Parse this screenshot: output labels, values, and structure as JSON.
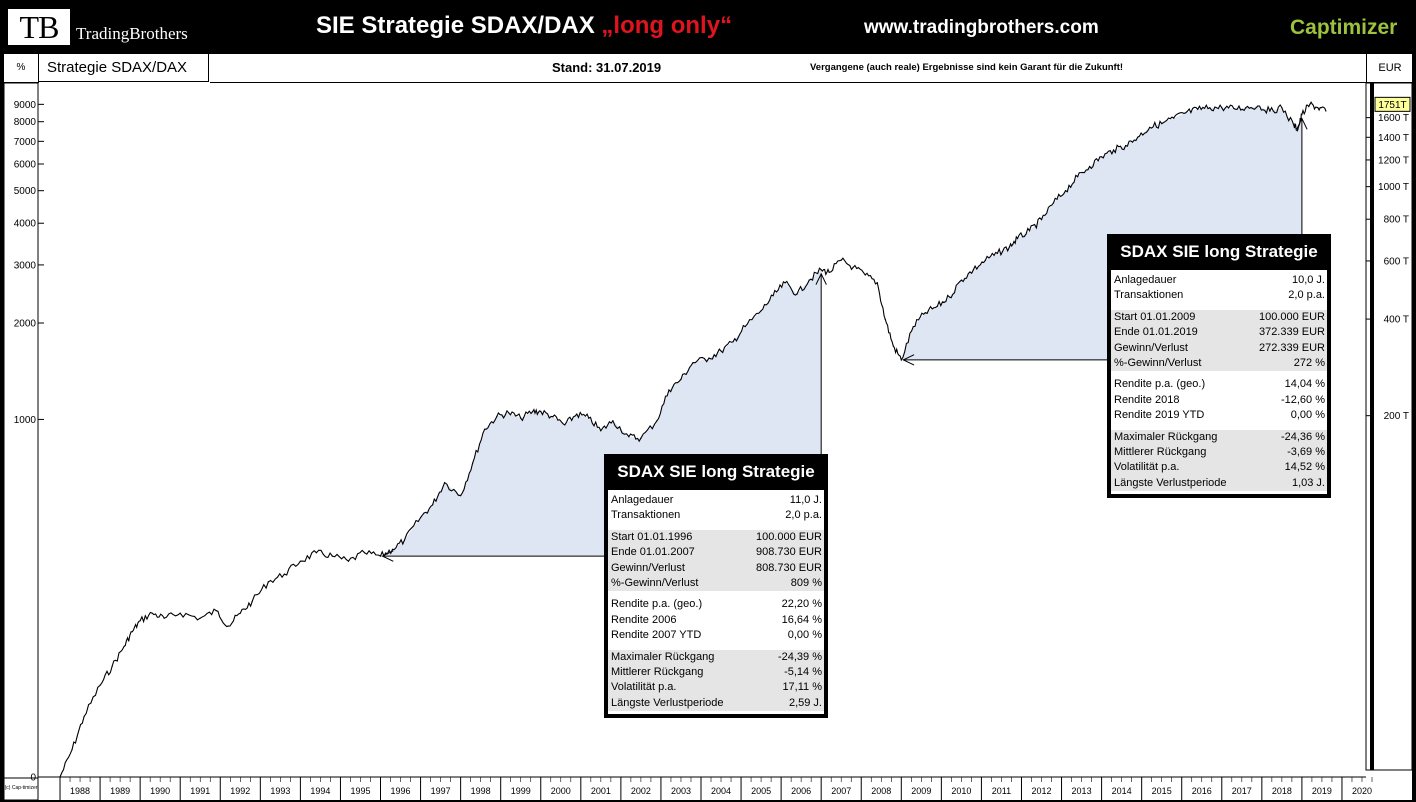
{
  "header": {
    "logo_mark": "TB",
    "logo_name": "TradingBrothers",
    "title": "SIE Strategie SDAX/DAX",
    "title_suffix": "„long only“",
    "url": "www.tradingbrothers.com",
    "brand": "Captimizer"
  },
  "subheader": {
    "unit": "%",
    "name": "Strategie SDAX/DAX",
    "stand": "Stand: 31.07.2019",
    "disclaimer": "Vergangene (auch reale) Ergebnisse sind kein Garant für die Zukunft!",
    "currency": "EUR",
    "copyright": "(c) Cap-timizer"
  },
  "colors": {
    "line": "#000000",
    "fill": "#dfe6f3",
    "accent_red": "#e0141e",
    "brand_green": "#9dc23b",
    "price_tag": "#ffff99"
  },
  "chart_data": {
    "type": "line",
    "scale": "log",
    "y_ticks": [
      "9000",
      "8000",
      "7000",
      "6000",
      "5000",
      "4000",
      "3000",
      "2000",
      "1000",
      "0"
    ],
    "right_ticks": [
      "1600 T",
      "1400 T",
      "1200 T",
      "1000 T",
      "800 T",
      "600 T",
      "400 T",
      "200 T"
    ],
    "current_value": "1751T",
    "x_ticks": [
      "1988",
      "1989",
      "1990",
      "1991",
      "1992",
      "1993",
      "1994",
      "1995",
      "1996",
      "1997",
      "1998",
      "1999",
      "2000",
      "2001",
      "2002",
      "2003",
      "2004",
      "2005",
      "2006",
      "2007",
      "2008",
      "2009",
      "2010",
      "2011",
      "2012",
      "2013",
      "2014",
      "2015",
      "2016",
      "2017",
      "2018",
      "2019",
      "2020"
    ],
    "series": [
      {
        "x": [
          1988.0,
          1988.3,
          1988.6,
          1989.0,
          1989.3,
          1989.6,
          1989.8,
          1990.0,
          1990.3,
          1990.6,
          1991.0,
          1991.5,
          1991.9,
          1992.2,
          1992.5,
          1992.8,
          1993.2,
          1993.6,
          1994.0,
          1994.4,
          1994.8,
          1995.2,
          1995.6,
          1996.0,
          1996.3,
          1996.6,
          1997.0,
          1997.3,
          1997.6,
          1998.0,
          1998.3,
          1998.6,
          1998.9,
          1999.2,
          1999.5,
          1999.8,
          2000.0,
          2000.3,
          2000.6,
          2000.9,
          2001.2,
          2001.5,
          2001.8,
          2002.2,
          2002.5,
          2002.9,
          2003.2,
          2003.5,
          2003.8,
          2004.2,
          2004.5,
          2004.8,
          2005.1,
          2005.5,
          2005.8,
          2006.1,
          2006.4,
          2006.7,
          2007.0,
          2007.2,
          2007.5,
          2007.8,
          2008.1,
          2008.4,
          2008.6,
          2008.8,
          2009.0,
          2009.3,
          2009.6,
          2009.9,
          2010.2,
          2010.5,
          2010.8,
          2011.1,
          2011.4,
          2011.7,
          2011.9,
          2012.2,
          2012.5,
          2012.8,
          2013.1,
          2013.4,
          2013.7,
          2014.0,
          2014.3,
          2014.6,
          2014.9,
          2015.2,
          2015.5,
          2015.8,
          2016.1,
          2016.4,
          2016.7,
          2017.0,
          2017.3,
          2017.6,
          2017.9,
          2018.2,
          2018.5,
          2018.8,
          2018.9,
          2019.0,
          2019.2,
          2019.4,
          2019.6
        ],
        "y": [
          0,
          20,
          50,
          85,
          110,
          140,
          165,
          185,
          200,
          190,
          200,
          190,
          205,
          175,
          200,
          225,
          270,
          290,
          325,
          350,
          340,
          325,
          350,
          340,
          360,
          390,
          470,
          520,
          620,
          560,
          720,
          930,
          1020,
          1050,
          1010,
          1060,
          1060,
          1020,
          960,
          1040,
          1010,
          920,
          990,
          880,
          870,
          990,
          1240,
          1340,
          1510,
          1560,
          1640,
          1750,
          1950,
          2180,
          2420,
          2650,
          2450,
          2700,
          2900,
          2850,
          3100,
          2950,
          2800,
          2650,
          2050,
          1700,
          1540,
          1950,
          2150,
          2250,
          2400,
          2700,
          2900,
          3100,
          3250,
          3400,
          3600,
          3800,
          4100,
          4600,
          5000,
          5500,
          5900,
          6300,
          6600,
          6800,
          7200,
          7700,
          7900,
          8200,
          8500,
          8700,
          8800,
          8800,
          8750,
          8800,
          8900,
          8600,
          8800,
          7800,
          7600,
          8400,
          9000,
          8800,
          8600
        ]
      }
    ],
    "shaded_periods": [
      [
        1996.0,
        2007.0
      ],
      [
        2009.0,
        2019.0
      ]
    ]
  },
  "stats_boxes": [
    {
      "title": "SDAX SIE long Strategie",
      "groups": [
        {
          "shaded": false,
          "rows": [
            {
              "label": "Anlagedauer",
              "value": "11,0 J."
            },
            {
              "label": "Transaktionen",
              "value": "2,0 p.a."
            }
          ]
        },
        {
          "shaded": true,
          "rows": [
            {
              "label": "Start  01.01.1996",
              "value": "100.000 EUR"
            },
            {
              "label": "Ende 01.01.2007",
              "value": "908.730 EUR"
            },
            {
              "label": "Gewinn/Verlust",
              "value": "808.730 EUR"
            },
            {
              "label": "%-Gewinn/Verlust",
              "value": "809 %"
            }
          ]
        },
        {
          "shaded": false,
          "rows": [
            {
              "label": "Rendite p.a. (geo.)",
              "value": "22,20 %"
            },
            {
              "label": "Rendite 2006",
              "value": "16,64 %"
            },
            {
              "label": "Rendite 2007 YTD",
              "value": "0,00 %"
            }
          ]
        },
        {
          "shaded": true,
          "rows": [
            {
              "label": "Maximaler Rückgang",
              "value": "-24,39 %"
            },
            {
              "label": "Mittlerer Rückgang",
              "value": "-5,14 %"
            },
            {
              "label": "Volatilität p.a.",
              "value": "17,11 %"
            },
            {
              "label": "Längste Verlustperiode",
              "value": "2,59 J."
            }
          ]
        }
      ]
    },
    {
      "title": "SDAX SIE long Strategie",
      "groups": [
        {
          "shaded": false,
          "rows": [
            {
              "label": "Anlagedauer",
              "value": "10,0 J."
            },
            {
              "label": "Transaktionen",
              "value": "2,0 p.a."
            }
          ]
        },
        {
          "shaded": true,
          "rows": [
            {
              "label": "Start  01.01.2009",
              "value": "100.000 EUR"
            },
            {
              "label": "Ende 01.01.2019",
              "value": "372.339 EUR"
            },
            {
              "label": "Gewinn/Verlust",
              "value": "272.339 EUR"
            },
            {
              "label": "%-Gewinn/Verlust",
              "value": "272 %"
            }
          ]
        },
        {
          "shaded": false,
          "rows": [
            {
              "label": "Rendite p.a. (geo.)",
              "value": "14,04 %"
            },
            {
              "label": "Rendite 2018",
              "value": "-12,60 %"
            },
            {
              "label": "Rendite 2019 YTD",
              "value": "0,00 %"
            }
          ]
        },
        {
          "shaded": true,
          "rows": [
            {
              "label": "Maximaler Rückgang",
              "value": "-24,36 %"
            },
            {
              "label": "Mittlerer Rückgang",
              "value": "-3,69 %"
            },
            {
              "label": "Volatilität p.a.",
              "value": "14,52 %"
            },
            {
              "label": "Längste Verlustperiode",
              "value": "1,03 J."
            }
          ]
        }
      ]
    }
  ]
}
